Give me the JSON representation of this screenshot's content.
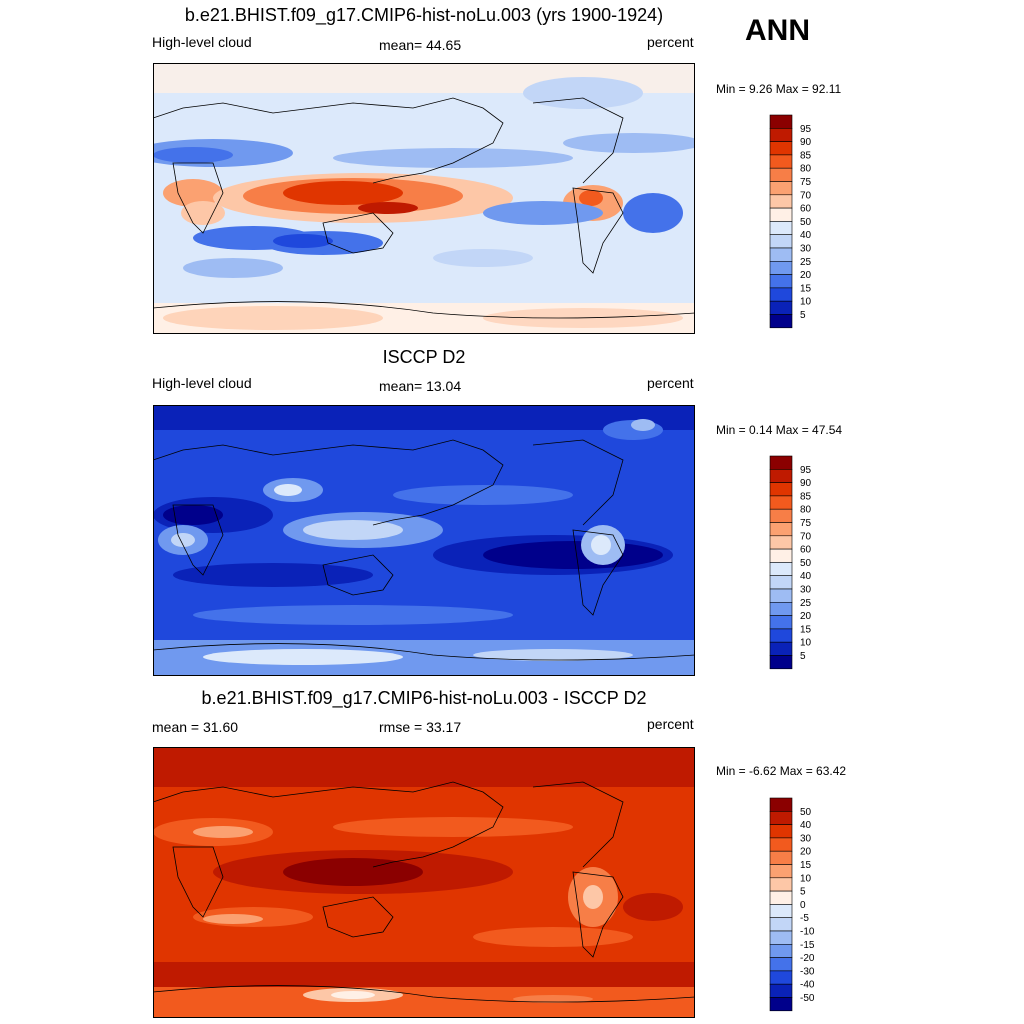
{
  "season": "ANN",
  "panels": [
    {
      "title": "b.e21.BHIST.f09_g17.CMIP6-hist-noLu.003 (yrs 1900-1924)",
      "left_label": "High-level cloud",
      "center_label": "mean=  44.65",
      "right_label": "percent",
      "minmax": "Min =   9.26 Max =  92.11",
      "colorbar": {
        "labels": [
          "95",
          "90",
          "85",
          "80",
          "75",
          "70",
          "60",
          "50",
          "40",
          "30",
          "25",
          "20",
          "15",
          "10",
          "5"
        ],
        "colors": [
          "#8b0000",
          "#bf1a00",
          "#e03500",
          "#f25a1e",
          "#f77e47",
          "#fba171",
          "#fdc7a7",
          "#fff0e6",
          "#dce9fb",
          "#c2d6f7",
          "#9ebcf3",
          "#7099ef",
          "#4472ea",
          "#1f48dc",
          "#0a22b8",
          "#00008b"
        ]
      }
    },
    {
      "title": "ISCCP D2",
      "left_label": "High-level cloud",
      "center_label": "mean=  13.04",
      "right_label": "percent",
      "minmax": "Min =   0.14 Max =  47.54",
      "colorbar": {
        "labels": [
          "95",
          "90",
          "85",
          "80",
          "75",
          "70",
          "60",
          "50",
          "40",
          "30",
          "25",
          "20",
          "15",
          "10",
          "5"
        ],
        "colors": [
          "#8b0000",
          "#bf1a00",
          "#e03500",
          "#f25a1e",
          "#f77e47",
          "#fba171",
          "#fdc7a7",
          "#fff0e6",
          "#dce9fb",
          "#c2d6f7",
          "#9ebcf3",
          "#7099ef",
          "#4472ea",
          "#1f48dc",
          "#0a22b8",
          "#00008b"
        ]
      }
    },
    {
      "title": "b.e21.BHIST.f09_g17.CMIP6-hist-noLu.003 - ISCCP D2",
      "left_label": "mean =  31.60",
      "center_label": "rmse =  33.17",
      "right_label": "percent",
      "minmax": "Min =  -6.62 Max =  63.42",
      "colorbar": {
        "labels": [
          "50",
          "40",
          "30",
          "20",
          "15",
          "10",
          "5",
          "0",
          "-5",
          "-10",
          "-15",
          "-20",
          "-30",
          "-40",
          "-50"
        ],
        "colors": [
          "#8b0000",
          "#bf1a00",
          "#e03500",
          "#f25a1e",
          "#f77e47",
          "#fba171",
          "#fdc7a7",
          "#fff0e6",
          "#dce9fb",
          "#c2d6f7",
          "#9ebcf3",
          "#7099ef",
          "#4472ea",
          "#1f48dc",
          "#0a22b8",
          "#00008b"
        ]
      }
    }
  ]
}
